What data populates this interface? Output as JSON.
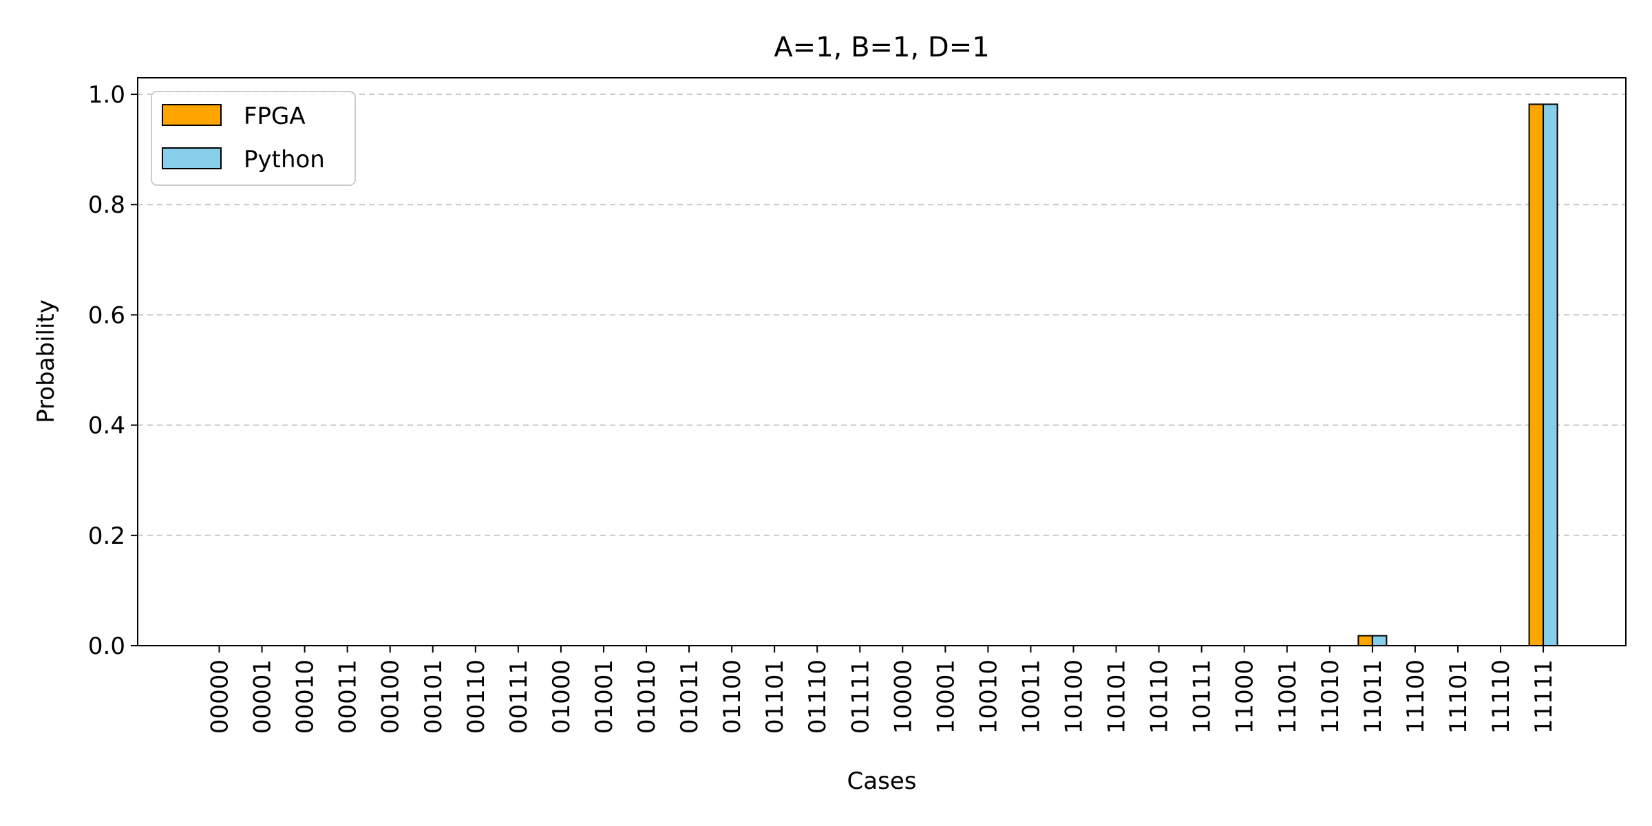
{
  "chart_data": {
    "type": "bar",
    "title": "A=1, B=1, D=1",
    "xlabel": "Cases",
    "ylabel": "Probability",
    "ylim": [
      0,
      1.03
    ],
    "yticks": [
      "0.0",
      "0.2",
      "0.4",
      "0.6",
      "0.8",
      "1.0"
    ],
    "grid": "y-dashed",
    "legend_position": "top-left",
    "categories": [
      "00000",
      "00001",
      "00010",
      "00011",
      "00100",
      "00101",
      "00110",
      "00111",
      "01000",
      "01001",
      "01010",
      "01011",
      "01100",
      "01101",
      "01110",
      "01111",
      "10000",
      "10001",
      "10010",
      "10011",
      "10100",
      "10101",
      "10110",
      "10111",
      "11000",
      "11001",
      "11010",
      "11011",
      "11100",
      "11101",
      "11110",
      "11111"
    ],
    "series": [
      {
        "name": "FPGA",
        "color": "#FFA500",
        "values": [
          0,
          0,
          0,
          0,
          0,
          0,
          0,
          0,
          0,
          0,
          0,
          0,
          0,
          0,
          0,
          0,
          0,
          0,
          0,
          0,
          0,
          0,
          0,
          0,
          0,
          0,
          0,
          0.018,
          0,
          0,
          0,
          0.982
        ]
      },
      {
        "name": "Python",
        "color": "#87CEEB",
        "values": [
          0,
          0,
          0,
          0,
          0,
          0,
          0,
          0,
          0,
          0,
          0,
          0,
          0,
          0,
          0,
          0,
          0,
          0,
          0,
          0,
          0,
          0,
          0,
          0,
          0,
          0,
          0,
          0.018,
          0,
          0,
          0,
          0.982
        ]
      }
    ]
  }
}
